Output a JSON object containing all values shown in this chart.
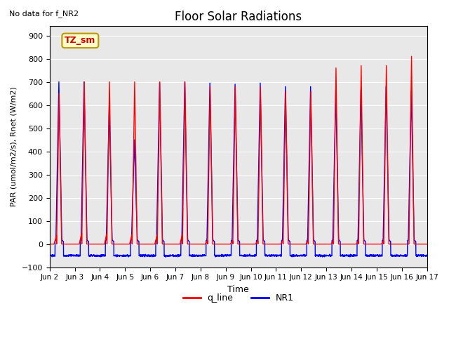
{
  "title": "Floor Solar Radiations",
  "subtitle": "No data for f_NR2",
  "xlabel": "Time",
  "ylabel": "PAR (umol/m2/s), Rnet (W/m2)",
  "ylim": [
    -100,
    940
  ],
  "yticks": [
    -100,
    0,
    100,
    200,
    300,
    400,
    500,
    600,
    700,
    800,
    900
  ],
  "xtick_labels": [
    "Jun 2",
    "Jun 3",
    "Jun 4",
    "Jun 5",
    "Jun 6",
    "Jun 7",
    "Jun 8",
    "Jun 9",
    "Jun 10",
    "Jun 11",
    "Jun 12",
    "Jun 13",
    "Jun 14",
    "Jun 15",
    "Jun 16",
    "Jun 17"
  ],
  "n_days": 15,
  "color_q": "#ff0000",
  "color_nr1": "#0000ff",
  "legend_label_q": "q_line",
  "legend_label_nr1": "NR1",
  "annotation_box": "TZ_sm",
  "annotation_box_facecolor": "#ffffcc",
  "annotation_box_edgecolor": "#bb9900",
  "background_color": "#e8e8e8",
  "linewidth": 1.0,
  "peaks_q": [
    650,
    700,
    700,
    700,
    700,
    700,
    680,
    680,
    680,
    660,
    660,
    760,
    770,
    770,
    810
  ],
  "peaks_nr1": [
    700,
    700,
    600,
    450,
    695,
    700,
    695,
    690,
    695,
    680,
    680,
    665,
    665,
    680,
    660
  ],
  "low_q": [
    80,
    100,
    100,
    90,
    85,
    90,
    30,
    30,
    30,
    30,
    30,
    30,
    30,
    30,
    0
  ],
  "low_nr1": [
    30,
    30,
    30,
    30,
    30,
    30,
    30,
    30,
    30,
    30,
    30,
    30,
    30,
    30,
    30
  ],
  "nighttime_nr1": -50,
  "pts_per_day": 200
}
